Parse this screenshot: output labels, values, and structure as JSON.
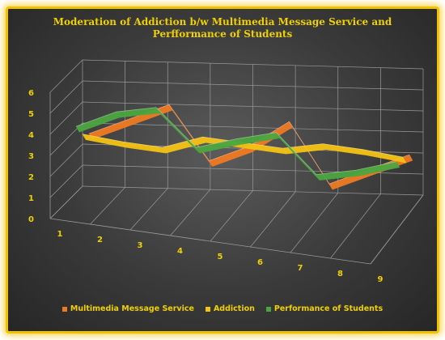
{
  "chart_data": {
    "type": "line",
    "title": "Moderation of Addiction b/w Multimedia Message Service and Perfformance of Students",
    "categories": [
      "1",
      "2",
      "3",
      "4",
      "5",
      "6",
      "7",
      "8",
      "9"
    ],
    "ylim": [
      0,
      6
    ],
    "yticks": [
      "0",
      "1",
      "2",
      "3",
      "4",
      "5",
      "6"
    ],
    "grid": true,
    "legend_position": "bottom",
    "series": [
      {
        "name": "Multimedia Message Service",
        "values": [
          3,
          4,
          5,
          2.5,
          3.5,
          5,
          2.2,
          3.2,
          4.2
        ],
        "color": "#f07a22"
      },
      {
        "name": "Addiction",
        "values": [
          3.3,
          3.2,
          3.2,
          4,
          4,
          4,
          4.5,
          4.5,
          4.4
        ],
        "color": "#f5c313"
      },
      {
        "name": "Performance of Students",
        "values": [
          4,
          5,
          5.5,
          3.8,
          4.5,
          5.1,
          3.3,
          3.8,
          4.5
        ],
        "color": "#4ca640"
      }
    ]
  }
}
